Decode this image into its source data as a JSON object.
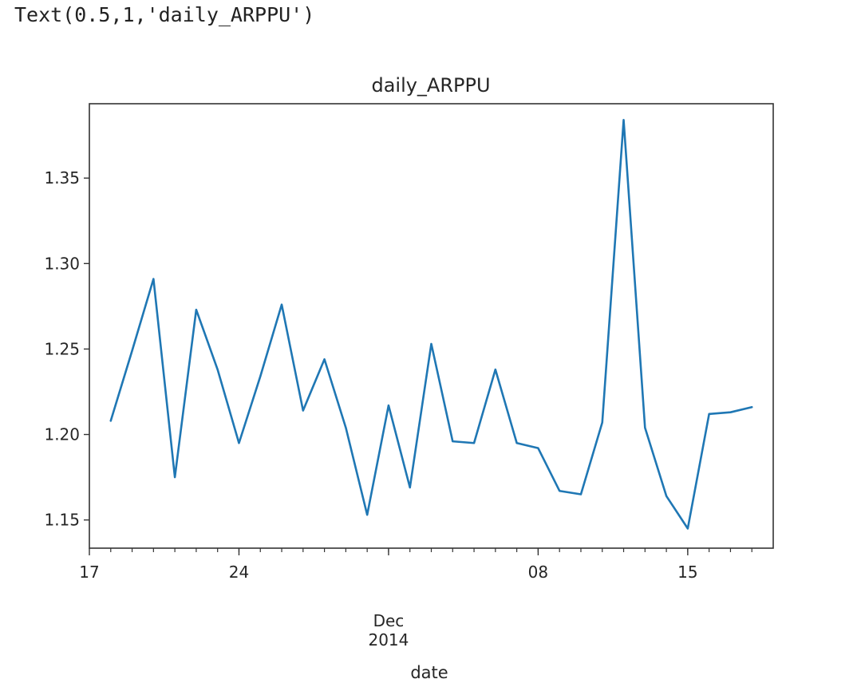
{
  "output_text": "Text(0.5,1,'daily_ARPPU')",
  "chart_data": {
    "type": "line",
    "title": "daily_ARPPU",
    "xlabel": "date",
    "ylabel": "",
    "x_start": "2014-11-17",
    "x_end": "2014-12-19",
    "ylim": [
      1.1335,
      1.3935
    ],
    "grid": false,
    "x": [
      "2014-11-18",
      "2014-11-19",
      "2014-11-20",
      "2014-11-21",
      "2014-11-22",
      "2014-11-23",
      "2014-11-24",
      "2014-11-25",
      "2014-11-26",
      "2014-11-27",
      "2014-11-28",
      "2014-11-29",
      "2014-11-30",
      "2014-12-01",
      "2014-12-02",
      "2014-12-03",
      "2014-12-04",
      "2014-12-05",
      "2014-12-06",
      "2014-12-07",
      "2014-12-08",
      "2014-12-09",
      "2014-12-10",
      "2014-12-11",
      "2014-12-12",
      "2014-12-13",
      "2014-12-14",
      "2014-12-15",
      "2014-12-16",
      "2014-12-17",
      "2014-12-18"
    ],
    "series": [
      {
        "color": "#1f77b4",
        "values": [
          1.208,
          1.249,
          1.291,
          1.175,
          1.273,
          1.238,
          1.195,
          1.234,
          1.276,
          1.214,
          1.244,
          1.204,
          1.153,
          1.217,
          1.169,
          1.253,
          1.196,
          1.195,
          1.238,
          1.195,
          1.192,
          1.167,
          1.165,
          1.207,
          1.384,
          1.204,
          1.164,
          1.145,
          1.212,
          1.213,
          1.216
        ]
      }
    ],
    "y_ticks": [
      {
        "value": 1.15,
        "label": "1.15"
      },
      {
        "value": 1.2,
        "label": "1.20"
      },
      {
        "value": 1.25,
        "label": "1.25"
      },
      {
        "value": 1.3,
        "label": "1.30"
      },
      {
        "value": 1.35,
        "label": "1.35"
      }
    ],
    "x_major_ticks": [
      {
        "date": "2014-11-17",
        "label": "17"
      },
      {
        "date": "2014-11-24",
        "label": "24"
      },
      {
        "date": "2014-12-01",
        "label": "Dec\n2014"
      },
      {
        "date": "2014-12-08",
        "label": "08"
      },
      {
        "date": "2014-12-15",
        "label": "15"
      }
    ]
  }
}
